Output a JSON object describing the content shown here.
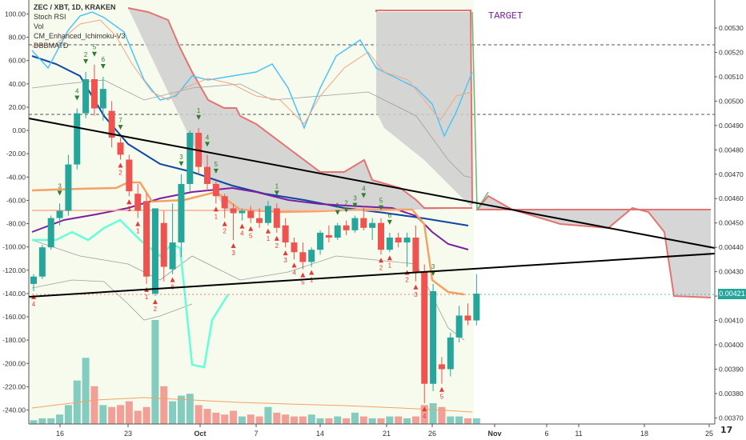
{
  "legend": {
    "title": "ZEC / XBT, 1D, KRAKEN",
    "rows": [
      "Stoch RSI",
      "Vol",
      "CM_Enhanced_Ichimoku-V3",
      "DBBMATD"
    ]
  },
  "annotation_target": "TARGET",
  "last_price_label": "0.00421",
  "logo_text": "17",
  "colors": {
    "bull": "#26a69a",
    "bear": "#ef5350",
    "cloud": "#cfcfcf",
    "cloud_edge": "#e57373",
    "stoch_k": "#4fc3f7",
    "stoch_d": "#f4a582",
    "ma_blue": "#0d47a1",
    "ma_purple": "#7b1fa2",
    "ma_orange": "#f4a261",
    "trend": "#000000",
    "aqua": "#64ffda"
  },
  "chart_data": {
    "type": "candlestick",
    "symbol": "ZEC / XBT",
    "interval": "1D",
    "exchange": "KRAKEN",
    "x_ticks": [
      "16",
      "23",
      "Oct",
      "7",
      "14",
      "21",
      "26",
      "Nov",
      "6",
      "11",
      "18",
      "25"
    ],
    "left_ticks": [
      "100.00",
      "80.00",
      "60.00",
      "40.00",
      "20.00",
      "0.00",
      "-20.00",
      "-40.00",
      "-60.00",
      "-80.00",
      "-100.00",
      "-120.00",
      "-140.00",
      "-160.00",
      "-180.00",
      "-200.00",
      "-220.00",
      "-240.00"
    ],
    "left_range": [
      -252,
      112
    ],
    "right_ticks": [
      "0.00540",
      "0.00530",
      "0.00520",
      "0.00510",
      "0.00500",
      "0.00490",
      "0.00480",
      "0.00470",
      "0.00460",
      "0.00450",
      "0.00440",
      "0.00430",
      "0.00420",
      "0.00410",
      "0.00400",
      "0.00390",
      "0.00380",
      "0.00370"
    ],
    "right_range": [
      0.003675,
      0.005415
    ],
    "candles": [
      {
        "o": 0.00425,
        "h": 0.00429,
        "l": 0.00422,
        "c": 0.00428
      },
      {
        "o": 0.00428,
        "h": 0.00441,
        "l": 0.00427,
        "c": 0.0044
      },
      {
        "o": 0.0044,
        "h": 0.00453,
        "l": 0.00439,
        "c": 0.00452
      },
      {
        "o": 0.00452,
        "h": 0.00458,
        "l": 0.00449,
        "c": 0.00455
      },
      {
        "o": 0.00455,
        "h": 0.00478,
        "l": 0.00453,
        "c": 0.00474
      },
      {
        "o": 0.00474,
        "h": 0.00497,
        "l": 0.00472,
        "c": 0.00495
      },
      {
        "o": 0.00495,
        "h": 0.00512,
        "l": 0.00493,
        "c": 0.00509
      },
      {
        "o": 0.00509,
        "h": 0.00515,
        "l": 0.00494,
        "c": 0.00497
      },
      {
        "o": 0.00497,
        "h": 0.0051,
        "l": 0.00492,
        "c": 0.00505
      },
      {
        "o": 0.00496,
        "h": 0.005,
        "l": 0.00481,
        "c": 0.00485
      },
      {
        "o": 0.00483,
        "h": 0.00485,
        "l": 0.00476,
        "c": 0.00478
      },
      {
        "o": 0.00476,
        "h": 0.00478,
        "l": 0.00461,
        "c": 0.00463
      },
      {
        "o": 0.00462,
        "h": 0.00466,
        "l": 0.00452,
        "c": 0.00455
      },
      {
        "o": 0.00459,
        "h": 0.00462,
        "l": 0.00425,
        "c": 0.00428
      },
      {
        "o": 0.00421,
        "h": 0.00455,
        "l": 0.0042,
        "c": 0.00456
      },
      {
        "o": 0.0045,
        "h": 0.00455,
        "l": 0.00426,
        "c": 0.00432
      },
      {
        "o": 0.00431,
        "h": 0.00458,
        "l": 0.00429,
        "c": 0.00442
      },
      {
        "o": 0.00442,
        "h": 0.0047,
        "l": 0.00436,
        "c": 0.00466
      },
      {
        "o": 0.00466,
        "h": 0.00488,
        "l": 0.00463,
        "c": 0.00487
      },
      {
        "o": 0.00487,
        "h": 0.00489,
        "l": 0.0047,
        "c": 0.00473
      },
      {
        "o": 0.00473,
        "h": 0.00478,
        "l": 0.00463,
        "c": 0.00466
      },
      {
        "o": 0.00466,
        "h": 0.00467,
        "l": 0.00458,
        "c": 0.00461
      },
      {
        "o": 0.00461,
        "h": 0.00462,
        "l": 0.00452,
        "c": 0.00456
      },
      {
        "o": 0.00456,
        "h": 0.00458,
        "l": 0.00443,
        "c": 0.00454
      },
      {
        "o": 0.00454,
        "h": 0.00456,
        "l": 0.00451,
        "c": 0.00455
      },
      {
        "o": 0.00455,
        "h": 0.00457,
        "l": 0.0045,
        "c": 0.00452
      },
      {
        "o": 0.00452,
        "h": 0.00456,
        "l": 0.00448,
        "c": 0.0045
      },
      {
        "o": 0.0045,
        "h": 0.00459,
        "l": 0.00449,
        "c": 0.00457
      },
      {
        "o": 0.00456,
        "h": 0.00458,
        "l": 0.00446,
        "c": 0.00448
      },
      {
        "o": 0.00449,
        "h": 0.00452,
        "l": 0.0044,
        "c": 0.00442
      },
      {
        "o": 0.00442,
        "h": 0.00444,
        "l": 0.00435,
        "c": 0.00438
      },
      {
        "o": 0.00438,
        "h": 0.00442,
        "l": 0.00431,
        "c": 0.00434
      },
      {
        "o": 0.00434,
        "h": 0.0044,
        "l": 0.00432,
        "c": 0.00439
      },
      {
        "o": 0.00439,
        "h": 0.00447,
        "l": 0.00437,
        "c": 0.00446
      },
      {
        "o": 0.00445,
        "h": 0.00449,
        "l": 0.00442,
        "c": 0.00444
      },
      {
        "o": 0.00444,
        "h": 0.0045,
        "l": 0.00443,
        "c": 0.00449
      },
      {
        "o": 0.00449,
        "h": 0.00451,
        "l": 0.00445,
        "c": 0.00447
      },
      {
        "o": 0.00447,
        "h": 0.00453,
        "l": 0.00446,
        "c": 0.00452
      },
      {
        "o": 0.00452,
        "h": 0.00457,
        "l": 0.00447,
        "c": 0.00448
      },
      {
        "o": 0.00448,
        "h": 0.00452,
        "l": 0.00443,
        "c": 0.0045
      },
      {
        "o": 0.0045,
        "h": 0.00452,
        "l": 0.00437,
        "c": 0.00439
      },
      {
        "o": 0.00439,
        "h": 0.00446,
        "l": 0.00438,
        "c": 0.00444
      },
      {
        "o": 0.00444,
        "h": 0.00446,
        "l": 0.0044,
        "c": 0.00442
      },
      {
        "o": 0.00442,
        "h": 0.00446,
        "l": 0.00432,
        "c": 0.00444
      },
      {
        "o": 0.00444,
        "h": 0.00449,
        "l": 0.00426,
        "c": 0.0043
      },
      {
        "o": 0.0043,
        "h": 0.00433,
        "l": 0.00376,
        "c": 0.00384
      },
      {
        "o": 0.00384,
        "h": 0.00425,
        "l": 0.00381,
        "c": 0.00422
      },
      {
        "o": 0.00392,
        "h": 0.00395,
        "l": 0.00384,
        "c": 0.0039
      },
      {
        "o": 0.0039,
        "h": 0.00405,
        "l": 0.00387,
        "c": 0.00403
      },
      {
        "o": 0.00403,
        "h": 0.00416,
        "l": 0.00401,
        "c": 0.00412
      },
      {
        "o": 0.00412,
        "h": 0.00417,
        "l": 0.00408,
        "c": 0.0041
      },
      {
        "o": 0.0041,
        "h": 0.00429,
        "l": 0.00408,
        "c": 0.00421
      }
    ],
    "stoch_k": [
      60,
      40,
      70,
      90,
      92,
      88,
      85,
      62,
      50,
      38,
      33,
      31,
      38,
      60,
      72,
      76,
      78,
      75,
      70,
      52,
      20,
      -42,
      -200,
      -201,
      -128,
      -105,
      -96,
      -87,
      -80,
      -72
    ],
    "stoch_d": [
      55,
      48,
      60,
      78,
      88,
      86,
      80,
      70,
      55,
      40,
      36,
      33,
      40,
      50,
      62,
      70,
      74,
      74,
      70,
      58,
      40,
      10,
      -60,
      -120
    ],
    "volume": [
      0.2,
      0.3,
      0.3,
      0.5,
      1.0,
      2.3,
      3.5,
      2.0,
      1.0,
      0.9,
      1.0,
      1.2,
      0.7,
      0.9,
      5.5,
      2.0,
      1.2,
      1.5,
      1.6,
      1.0,
      0.8,
      0.6,
      0.5,
      0.7,
      0.4,
      0.5,
      0.4,
      0.9,
      0.6,
      0.5,
      0.4,
      0.4,
      0.5,
      0.3,
      0.3,
      0.4,
      0.3,
      0.6,
      0.4,
      0.3,
      0.3,
      0.4,
      0.4,
      0.3,
      0.4,
      1.0,
      1.1,
      0.9,
      0.4,
      0.4,
      0.3,
      0.3
    ],
    "sequence_up": [
      "3",
      "2",
      "4",
      "5",
      "6",
      "7",
      "3",
      "1",
      "4",
      "5",
      "1",
      "1",
      "2",
      "3",
      "4",
      "5",
      "6",
      "3"
    ],
    "sequence_down": [
      "4",
      "1",
      "2",
      "3",
      "1",
      "1",
      "2",
      "6",
      "1",
      "2",
      "3",
      "4",
      "5",
      "1",
      "2",
      "3",
      "4",
      "5",
      "1",
      "2",
      "1",
      "2",
      "3",
      "4",
      "5"
    ],
    "target_level": 0.0054,
    "last_price": 0.00421
  }
}
